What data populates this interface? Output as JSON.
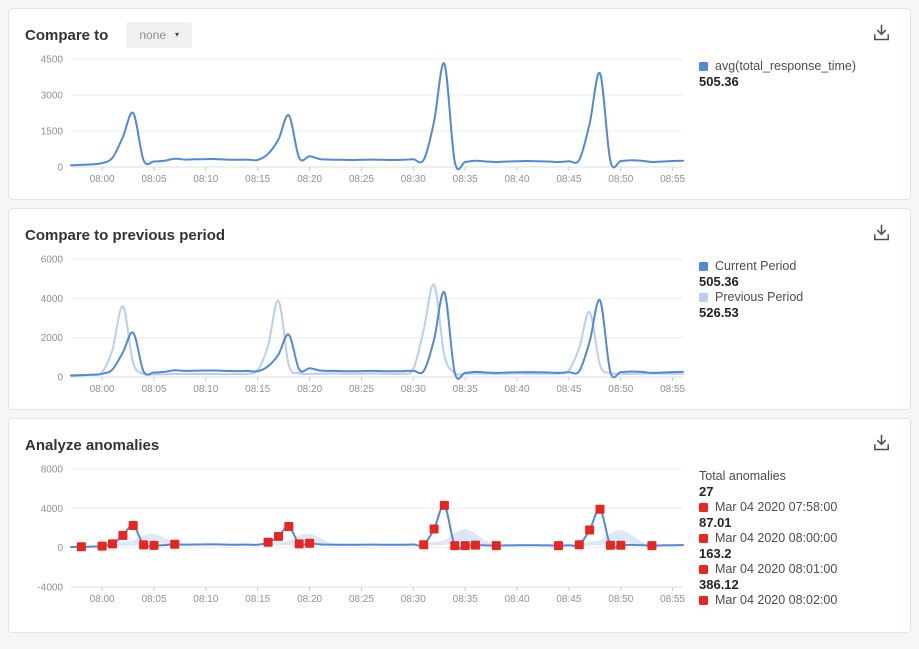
{
  "icons": {
    "chevron_down": "▾"
  },
  "colors": {
    "current": "#5289d6",
    "previous": "#b9cfee",
    "band": "#c9dcf3",
    "anomaly": "#e8261f",
    "grid": "#ececee",
    "axis_text": "#8e9093"
  },
  "panels": [
    {
      "title": "Compare to",
      "dropdown_label": "none",
      "legend": [
        {
          "label": "avg(total_response_time)",
          "value": "505.36"
        }
      ]
    },
    {
      "title": "Compare to previous period",
      "legend": [
        {
          "label": "Current Period",
          "value": "505.36"
        },
        {
          "label": "Previous Period",
          "value": "526.53"
        }
      ]
    },
    {
      "title": "Analyze anomalies",
      "total_label": "Total anomalies",
      "total_value": "27",
      "legend": [
        {
          "label": "Mar 04 2020 07:58:00",
          "value": "87.01"
        },
        {
          "label": "Mar 04 2020 08:00:00",
          "value": "163.2"
        },
        {
          "label": "Mar 04 2020 08:01:00",
          "value": "386.12"
        },
        {
          "label": "Mar 04 2020 08:02:00",
          "value": ""
        }
      ]
    }
  ],
  "chart_data": [
    {
      "type": "line",
      "title": "Compare to",
      "ylim": [
        0,
        4500
      ],
      "yticks": [
        0,
        1500,
        3000,
        4500
      ],
      "xticks": [
        "08:00",
        "08:05",
        "08:10",
        "08:15",
        "08:20",
        "08:25",
        "08:30",
        "08:35",
        "08:40",
        "08:45",
        "08:50",
        "08:55"
      ],
      "x": [
        "07:57",
        "07:58",
        "07:59",
        "08:00",
        "08:01",
        "08:02",
        "08:03",
        "08:04",
        "08:05",
        "08:06",
        "08:07",
        "08:08",
        "08:09",
        "08:10",
        "08:11",
        "08:12",
        "08:13",
        "08:14",
        "08:15",
        "08:16",
        "08:17",
        "08:18",
        "08:19",
        "08:20",
        "08:21",
        "08:22",
        "08:23",
        "08:24",
        "08:25",
        "08:26",
        "08:27",
        "08:28",
        "08:29",
        "08:30",
        "08:31",
        "08:32",
        "08:33",
        "08:34",
        "08:35",
        "08:36",
        "08:37",
        "08:38",
        "08:39",
        "08:40",
        "08:41",
        "08:42",
        "08:43",
        "08:44",
        "08:45",
        "08:46",
        "08:47",
        "08:48",
        "08:49",
        "08:50",
        "08:51",
        "08:52",
        "08:53",
        "08:54",
        "08:55",
        "08:56"
      ],
      "series": [
        {
          "name": "avg(total_response_time)",
          "color": "#5289d6",
          "values": [
            70,
            87,
            110,
            163,
            386,
            1250,
            2250,
            280,
            230,
            260,
            340,
            310,
            320,
            330,
            330,
            310,
            300,
            310,
            295,
            550,
            1150,
            2150,
            380,
            450,
            330,
            310,
            300,
            290,
            300,
            310,
            300,
            290,
            300,
            320,
            300,
            1900,
            4300,
            210,
            210,
            260,
            230,
            210,
            230,
            240,
            250,
            240,
            230,
            210,
            240,
            300,
            1800,
            3900,
            250,
            250,
            280,
            260,
            210,
            230,
            250,
            260
          ]
        }
      ]
    },
    {
      "type": "line",
      "title": "Compare to previous period",
      "ylim": [
        0,
        6000
      ],
      "yticks": [
        0,
        2000,
        4000,
        6000
      ],
      "xticks": [
        "08:00",
        "08:05",
        "08:10",
        "08:15",
        "08:20",
        "08:25",
        "08:30",
        "08:35",
        "08:40",
        "08:45",
        "08:50",
        "08:55"
      ],
      "x": [
        "07:57",
        "07:58",
        "07:59",
        "08:00",
        "08:01",
        "08:02",
        "08:03",
        "08:04",
        "08:05",
        "08:06",
        "08:07",
        "08:08",
        "08:09",
        "08:10",
        "08:11",
        "08:12",
        "08:13",
        "08:14",
        "08:15",
        "08:16",
        "08:17",
        "08:18",
        "08:19",
        "08:20",
        "08:21",
        "08:22",
        "08:23",
        "08:24",
        "08:25",
        "08:26",
        "08:27",
        "08:28",
        "08:29",
        "08:30",
        "08:31",
        "08:32",
        "08:33",
        "08:34",
        "08:35",
        "08:36",
        "08:37",
        "08:38",
        "08:39",
        "08:40",
        "08:41",
        "08:42",
        "08:43",
        "08:44",
        "08:45",
        "08:46",
        "08:47",
        "08:48",
        "08:49",
        "08:50",
        "08:51",
        "08:52",
        "08:53",
        "08:54",
        "08:55",
        "08:56"
      ],
      "series": [
        {
          "name": "Current Period",
          "color": "#5289d6",
          "values": [
            70,
            87,
            110,
            163,
            386,
            1250,
            2250,
            280,
            230,
            260,
            340,
            310,
            320,
            330,
            330,
            310,
            300,
            310,
            295,
            550,
            1150,
            2150,
            380,
            450,
            330,
            310,
            300,
            290,
            300,
            310,
            300,
            290,
            300,
            320,
            300,
            1900,
            4300,
            210,
            210,
            260,
            230,
            210,
            230,
            240,
            250,
            240,
            230,
            210,
            240,
            300,
            1800,
            3900,
            250,
            250,
            280,
            260,
            210,
            230,
            250,
            260
          ]
        },
        {
          "name": "Previous Period",
          "color": "#b9cfee",
          "values": [
            100,
            110,
            120,
            250,
            1400,
            3600,
            700,
            160,
            130,
            140,
            150,
            160,
            150,
            160,
            150,
            140,
            150,
            160,
            350,
            1600,
            3870,
            600,
            200,
            160,
            170,
            180,
            170,
            160,
            170,
            180,
            170,
            160,
            170,
            400,
            2400,
            4700,
            1100,
            200,
            170,
            180,
            170,
            160,
            170,
            180,
            170,
            160,
            170,
            180,
            350,
            1500,
            3300,
            600,
            200,
            170,
            160,
            170,
            180,
            170,
            160,
            170
          ]
        }
      ]
    },
    {
      "type": "line",
      "title": "Analyze anomalies",
      "total_anomalies": 27,
      "ylim": [
        -4000,
        8000
      ],
      "yticks": [
        -4000,
        0,
        4000,
        8000
      ],
      "xticks": [
        "08:00",
        "08:05",
        "08:10",
        "08:15",
        "08:20",
        "08:25",
        "08:30",
        "08:35",
        "08:40",
        "08:45",
        "08:50",
        "08:55"
      ],
      "x": [
        "07:57",
        "07:58",
        "07:59",
        "08:00",
        "08:01",
        "08:02",
        "08:03",
        "08:04",
        "08:05",
        "08:06",
        "08:07",
        "08:08",
        "08:09",
        "08:10",
        "08:11",
        "08:12",
        "08:13",
        "08:14",
        "08:15",
        "08:16",
        "08:17",
        "08:18",
        "08:19",
        "08:20",
        "08:21",
        "08:22",
        "08:23",
        "08:24",
        "08:25",
        "08:26",
        "08:27",
        "08:28",
        "08:29",
        "08:30",
        "08:31",
        "08:32",
        "08:33",
        "08:34",
        "08:35",
        "08:36",
        "08:37",
        "08:38",
        "08:39",
        "08:40",
        "08:41",
        "08:42",
        "08:43",
        "08:44",
        "08:45",
        "08:46",
        "08:47",
        "08:48",
        "08:49",
        "08:50",
        "08:51",
        "08:52",
        "08:53",
        "08:54",
        "08:55",
        "08:56"
      ],
      "series": [
        {
          "name": "avg(total_response_time)",
          "color": "#5289d6",
          "values": [
            70,
            87,
            110,
            163,
            386,
            1250,
            2250,
            280,
            230,
            260,
            340,
            310,
            320,
            330,
            330,
            310,
            300,
            310,
            295,
            550,
            1150,
            2150,
            380,
            450,
            330,
            310,
            300,
            290,
            300,
            310,
            300,
            290,
            300,
            320,
            300,
            1900,
            4300,
            210,
            210,
            260,
            230,
            210,
            230,
            240,
            250,
            240,
            230,
            210,
            240,
            300,
            1800,
            3900,
            250,
            250,
            280,
            260,
            210,
            230,
            250,
            260
          ]
        }
      ],
      "band": {
        "color": "#c9dcf3",
        "upper": [
          170,
          190,
          210,
          280,
          500,
          600,
          700,
          1250,
          1400,
          1000,
          500,
          420,
          430,
          440,
          440,
          420,
          410,
          420,
          410,
          500,
          600,
          700,
          1250,
          1400,
          1000,
          500,
          410,
          400,
          410,
          420,
          410,
          400,
          410,
          430,
          450,
          600,
          750,
          1500,
          1900,
          1400,
          700,
          400,
          340,
          350,
          360,
          350,
          340,
          320,
          350,
          450,
          600,
          750,
          1400,
          1800,
          1300,
          600,
          380,
          340,
          360,
          370
        ],
        "lower": [
          30,
          40,
          50,
          80,
          150,
          180,
          200,
          450,
          600,
          350,
          250,
          200,
          210,
          220,
          220,
          200,
          190,
          200,
          190,
          200,
          220,
          250,
          450,
          600,
          350,
          220,
          190,
          180,
          190,
          200,
          190,
          180,
          190,
          200,
          180,
          220,
          250,
          500,
          750,
          500,
          280,
          160,
          140,
          150,
          160,
          150,
          140,
          130,
          150,
          180,
          220,
          250,
          500,
          700,
          450,
          260,
          150,
          140,
          150,
          160
        ]
      },
      "anomaly_color": "#e8261f",
      "anomalies": [
        {
          "time": "07:58",
          "value": 87.01
        },
        {
          "time": "08:00",
          "value": 163.2
        },
        {
          "time": "08:01",
          "value": 386.12
        },
        {
          "time": "08:02",
          "value": 1250
        },
        {
          "time": "08:03",
          "value": 2250
        },
        {
          "time": "08:04",
          "value": 280
        },
        {
          "time": "08:05",
          "value": 230
        },
        {
          "time": "08:07",
          "value": 340
        },
        {
          "time": "08:16",
          "value": 550
        },
        {
          "time": "08:17",
          "value": 1150
        },
        {
          "time": "08:18",
          "value": 2150
        },
        {
          "time": "08:19",
          "value": 380
        },
        {
          "time": "08:20",
          "value": 450
        },
        {
          "time": "08:31",
          "value": 300
        },
        {
          "time": "08:32",
          "value": 1900
        },
        {
          "time": "08:33",
          "value": 4300
        },
        {
          "time": "08:34",
          "value": 210
        },
        {
          "time": "08:35",
          "value": 210
        },
        {
          "time": "08:36",
          "value": 260
        },
        {
          "time": "08:38",
          "value": 210
        },
        {
          "time": "08:44",
          "value": 210
        },
        {
          "time": "08:46",
          "value": 300
        },
        {
          "time": "08:47",
          "value": 1800
        },
        {
          "time": "08:48",
          "value": 3900
        },
        {
          "time": "08:49",
          "value": 250
        },
        {
          "time": "08:50",
          "value": 250
        },
        {
          "time": "08:53",
          "value": 210
        }
      ]
    }
  ]
}
